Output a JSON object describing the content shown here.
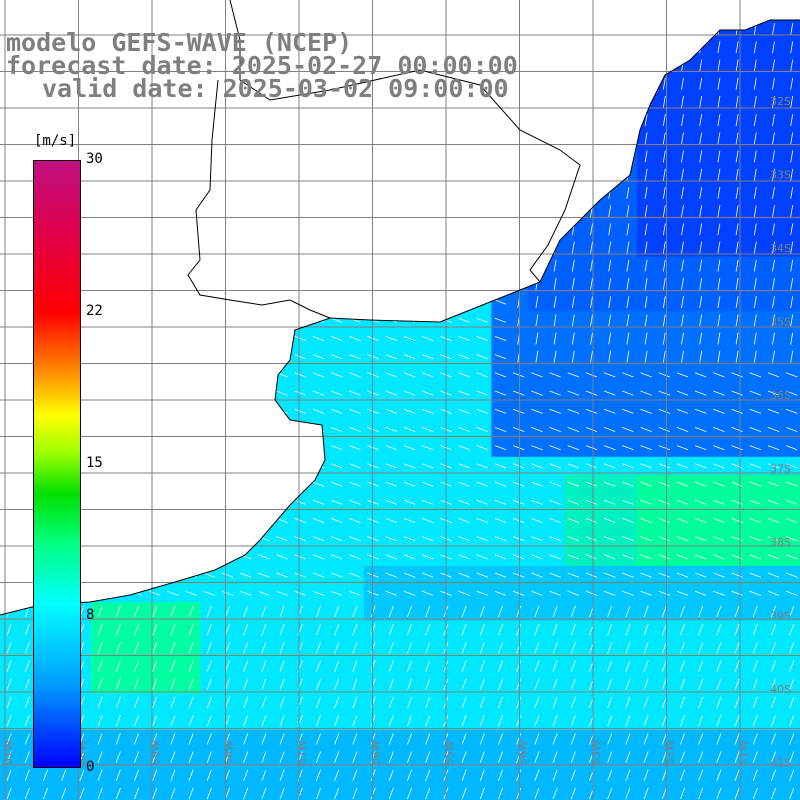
{
  "title": {
    "line1": "modelo GEFS-WAVE (NCEP)",
    "line2": "forecast date: 2025-02-27 00:00:00",
    "line3": "valid date: 2025-03-02 09:00:00"
  },
  "colorbar": {
    "units": "[m/s]",
    "ticks": [
      "30",
      "22",
      "15",
      "8",
      "0"
    ],
    "tick_values": [
      30,
      22,
      15,
      8,
      0
    ],
    "range": [
      0,
      30
    ],
    "colors": [
      "#0000ff",
      "#00a0ff",
      "#00ffff",
      "#00ff80",
      "#00e000",
      "#a0ff00",
      "#ffff00",
      "#ff8000",
      "#ff0000",
      "#e0004a",
      "#c01080"
    ]
  },
  "map": {
    "lat_labels": [
      "32S",
      "33S",
      "34S",
      "35S",
      "36S",
      "37S",
      "38S",
      "39S",
      "40S",
      "41S"
    ],
    "lon_labels": [
      "61W",
      "60W",
      "59W",
      "58W",
      "57W",
      "56W",
      "55W",
      "54W",
      "53W",
      "52W",
      "51W"
    ],
    "land_color": "#ffffff",
    "grid_color": "#808080",
    "wind_arrow_color": "#ffffff"
  }
}
